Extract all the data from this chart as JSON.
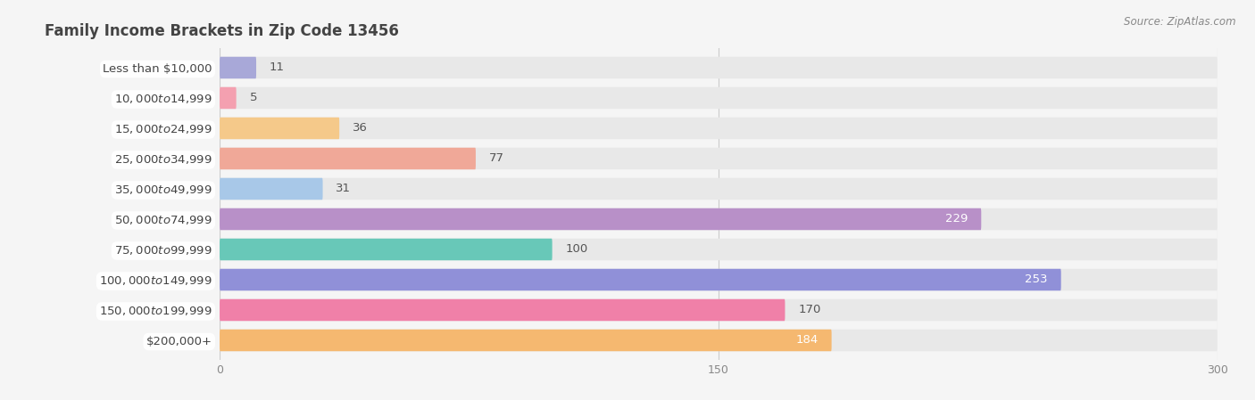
{
  "title": "Family Income Brackets in Zip Code 13456",
  "source": "Source: ZipAtlas.com",
  "categories": [
    "Less than $10,000",
    "$10,000 to $14,999",
    "$15,000 to $24,999",
    "$25,000 to $34,999",
    "$35,000 to $49,999",
    "$50,000 to $74,999",
    "$75,000 to $99,999",
    "$100,000 to $149,999",
    "$150,000 to $199,999",
    "$200,000+"
  ],
  "values": [
    11,
    5,
    36,
    77,
    31,
    229,
    100,
    253,
    170,
    184
  ],
  "bar_colors": [
    "#a8a8d8",
    "#f4a0b0",
    "#f5c98a",
    "#f0a898",
    "#a8c8e8",
    "#b890c8",
    "#68c8b8",
    "#9090d8",
    "#f080a8",
    "#f5b870"
  ],
  "value_inside": [
    false,
    false,
    false,
    false,
    false,
    true,
    false,
    true,
    false,
    true
  ],
  "xlim": [
    0,
    300
  ],
  "xticks": [
    0,
    150,
    300
  ],
  "background_color": "#f5f5f5",
  "bar_background_color": "#e8e8e8",
  "title_fontsize": 12,
  "label_fontsize": 9.5,
  "value_fontsize": 9.5,
  "bar_height": 0.72,
  "title_color": "#444444",
  "label_text_color": "#444444",
  "value_outside_color": "#555555",
  "value_inside_color": "#ffffff",
  "source_color": "#888888",
  "grid_color": "#cccccc",
  "tick_color": "#888888"
}
